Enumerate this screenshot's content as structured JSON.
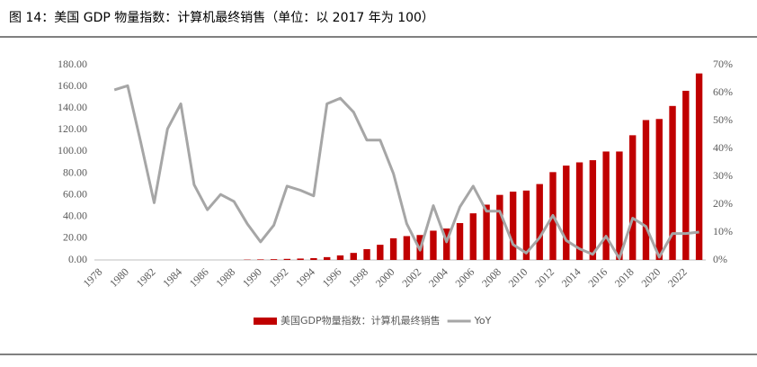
{
  "chart_data": {
    "type": "bar_line",
    "title": "图 14：美国 GDP 物量指数：计算机最终销售（单位：以 2017 年为 100）",
    "categories": [
      "1978",
      null,
      "1980",
      null,
      "1982",
      null,
      "1984",
      null,
      "1986",
      null,
      "1988",
      null,
      "1990",
      null,
      "1992",
      null,
      "1994",
      null,
      "1996",
      null,
      "1998",
      null,
      "2000",
      null,
      "2002",
      null,
      "2004",
      null,
      "2006",
      null,
      "2008",
      null,
      "2010",
      null,
      "2012",
      null,
      "2014",
      null,
      "2016",
      null,
      "2018",
      null,
      "2020",
      null,
      "2022",
      null
    ],
    "series": [
      {
        "name": "美国GDP物量指数：计算机最终销售",
        "color": "#c00000",
        "kind": "bar",
        "values": [
          null,
          0,
          0,
          0,
          0,
          0,
          0,
          0,
          0,
          0,
          0,
          0.3,
          0.5,
          0.7,
          1.0,
          1.3,
          1.7,
          2.6,
          4.2,
          6.5,
          10,
          14,
          20,
          22,
          23,
          27,
          29,
          34,
          43,
          51,
          60,
          63,
          64,
          70,
          81,
          87,
          90,
          92,
          100,
          100,
          115,
          129,
          130,
          142,
          156,
          172
        ]
      },
      {
        "name": "YoY",
        "color": "#a6a6a6",
        "kind": "line",
        "axis": "y2",
        "values": [
          null,
          61,
          62.5,
          42,
          20.5,
          47,
          56,
          27,
          18,
          23.5,
          21,
          13,
          6.5,
          12.5,
          26.5,
          25,
          23,
          56,
          58,
          53,
          43,
          43,
          31,
          13,
          3.5,
          19.5,
          6.5,
          19,
          26.5,
          17.5,
          17.5,
          5.5,
          2.5,
          8,
          16,
          7,
          4,
          2,
          8.5,
          0.5,
          15,
          12,
          1,
          9.5,
          9.5,
          10
        ]
      }
    ],
    "ylim": [
      0,
      180
    ],
    "yticks": [
      {
        "value": 0,
        "label": "0.00"
      },
      {
        "value": 20,
        "label": "20.00"
      },
      {
        "value": 40,
        "label": "40.00"
      },
      {
        "value": 60,
        "label": "60.00"
      },
      {
        "value": 80,
        "label": "80.00"
      },
      {
        "value": 100,
        "label": "100.00"
      },
      {
        "value": 120,
        "label": "120.00"
      },
      {
        "value": 140,
        "label": "140.00"
      },
      {
        "value": 160,
        "label": "160.00"
      },
      {
        "value": 180,
        "label": "180.00"
      }
    ],
    "y2lim": [
      0,
      70
    ],
    "y2ticks": [
      {
        "value": 0,
        "label": "0%"
      },
      {
        "value": 10,
        "label": "10%"
      },
      {
        "value": 20,
        "label": "20%"
      },
      {
        "value": 30,
        "label": "30%"
      },
      {
        "value": 40,
        "label": "40%"
      },
      {
        "value": 50,
        "label": "50%"
      },
      {
        "value": 60,
        "label": "60%"
      },
      {
        "value": 70,
        "label": "70%"
      }
    ],
    "legend": "bottom"
  }
}
